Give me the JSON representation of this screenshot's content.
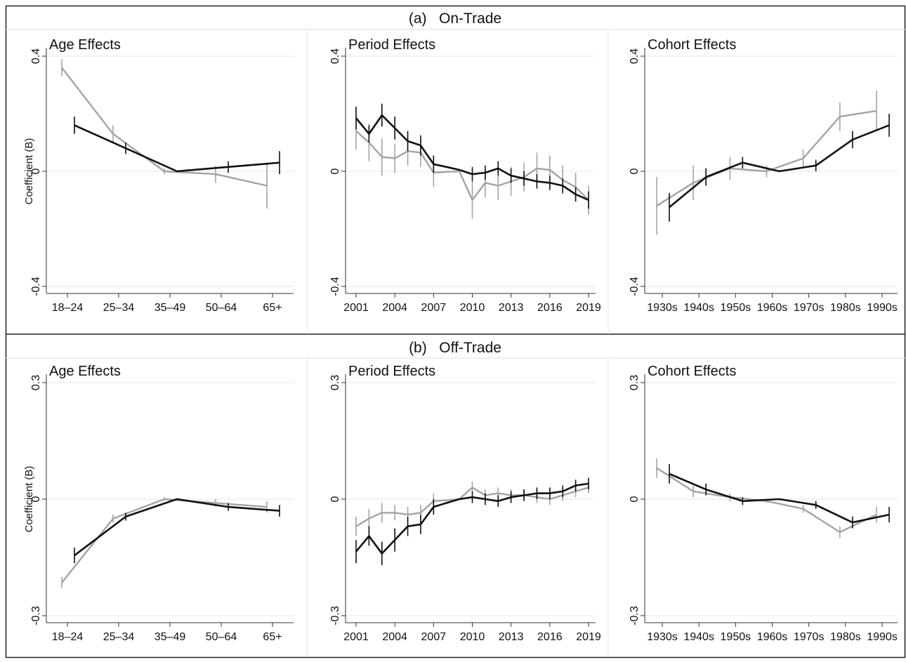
{
  "figure": {
    "rows": [
      {
        "title": "(a)   On-Trade"
      },
      {
        "title": "(b)   Off-Trade"
      }
    ],
    "ylabel": "Coefficient (B)",
    "colors": {
      "series_black": "#111111",
      "series_gray": "#a3a3a3",
      "gridline": "#e6e6e6",
      "border": "#222222"
    }
  },
  "chart_data": [
    {
      "type": "line",
      "row": 0,
      "col": 0,
      "title": "Age Effects",
      "ylabel": "Coefficient (B)",
      "categories": [
        "18–24",
        "25–34",
        "35–49",
        "50–64",
        "65+"
      ],
      "ylim": [
        -0.4,
        0.4
      ],
      "yticks": [
        -0.4,
        0,
        0.4
      ],
      "yticklabels": [
        "-0.4",
        "0",
        "0.4"
      ],
      "grid": true,
      "series": [
        {
          "color": "gray",
          "values": [
            0.36,
            0.13,
            0.0,
            -0.01,
            -0.05
          ],
          "ci": [
            0.03,
            0.03,
            0.01,
            0.03,
            0.08
          ]
        },
        {
          "color": "black",
          "values": [
            0.16,
            0.08,
            0.0,
            0.015,
            0.03
          ],
          "ci": [
            0.03,
            0.02,
            0.0,
            0.02,
            0.04
          ]
        }
      ]
    },
    {
      "type": "line",
      "row": 0,
      "col": 1,
      "title": "Period Effects",
      "ylabel": "",
      "x": [
        2001,
        2002,
        2003,
        2004,
        2005,
        2006,
        2007,
        2008,
        2009,
        2010,
        2011,
        2012,
        2013,
        2014,
        2015,
        2016,
        2017,
        2018,
        2019
      ],
      "xticks": [
        2001,
        2004,
        2007,
        2010,
        2013,
        2016,
        2019
      ],
      "ylim": [
        -0.4,
        0.4
      ],
      "yticks": [
        -0.4,
        0,
        0.4
      ],
      "yticklabels": [
        "-0.4",
        "0",
        "0.4"
      ],
      "grid": true,
      "series": [
        {
          "color": "gray",
          "values": [
            0.14,
            0.1,
            0.05,
            0.045,
            0.07,
            0.065,
            -0.005,
            -0.002,
            0.0,
            -0.1,
            -0.04,
            -0.05,
            -0.035,
            -0.02,
            0.01,
            0.005,
            -0.03,
            -0.055,
            -0.1
          ],
          "ci": [
            0.065,
            0.065,
            0.065,
            0.05,
            0.05,
            0.05,
            0.05,
            0.0,
            0.0,
            0.065,
            0.05,
            0.05,
            0.05,
            0.05,
            0.055,
            0.05,
            0.05,
            0.05,
            0.05
          ]
        },
        {
          "color": "black",
          "values": [
            0.185,
            0.13,
            0.195,
            0.15,
            0.105,
            0.09,
            0.025,
            0.015,
            0.005,
            -0.01,
            -0.005,
            0.01,
            -0.015,
            -0.025,
            -0.035,
            -0.04,
            -0.05,
            -0.08,
            -0.1
          ],
          "ci": [
            0.04,
            0.03,
            0.04,
            0.04,
            0.035,
            0.035,
            0.03,
            0.0,
            0.0,
            0.025,
            0.025,
            0.025,
            0.025,
            0.025,
            0.025,
            0.025,
            0.025,
            0.025,
            0.03
          ]
        }
      ]
    },
    {
      "type": "line",
      "row": 0,
      "col": 2,
      "title": "Cohort Effects",
      "ylabel": "",
      "categories": [
        "1930s",
        "1940s",
        "1950s",
        "1960s",
        "1970s",
        "1980s",
        "1990s"
      ],
      "ylim": [
        -0.4,
        0.4
      ],
      "yticks": [
        -0.4,
        0,
        0.4
      ],
      "yticklabels": [
        "-0.4",
        "0",
        "0.4"
      ],
      "grid": true,
      "series": [
        {
          "color": "gray",
          "values": [
            -0.12,
            -0.04,
            0.01,
            0.0,
            0.045,
            0.19,
            0.21
          ],
          "ci": [
            0.1,
            0.06,
            0.04,
            0.02,
            0.03,
            0.05,
            0.07
          ]
        },
        {
          "color": "black",
          "values": [
            -0.125,
            -0.02,
            0.03,
            0.0,
            0.02,
            0.11,
            0.16
          ],
          "ci": [
            0.05,
            0.03,
            0.02,
            0.0,
            0.02,
            0.03,
            0.04
          ]
        }
      ]
    },
    {
      "type": "line",
      "row": 1,
      "col": 0,
      "title": "Age Effects",
      "ylabel": "Coefficient (B)",
      "categories": [
        "18–24",
        "25–34",
        "35–49",
        "50–64",
        "65+"
      ],
      "ylim": [
        -0.3,
        0.3
      ],
      "yticks": [
        -0.3,
        0,
        0.3
      ],
      "yticklabels": [
        "-0.3",
        "0",
        "0.3"
      ],
      "grid": true,
      "series": [
        {
          "color": "gray",
          "values": [
            -0.215,
            -0.05,
            0.0,
            -0.01,
            -0.02
          ],
          "ci": [
            0.015,
            0.01,
            0.005,
            0.01,
            0.015
          ]
        },
        {
          "color": "black",
          "values": [
            -0.145,
            -0.045,
            0.0,
            -0.02,
            -0.03
          ],
          "ci": [
            0.02,
            0.01,
            0.0,
            0.01,
            0.015
          ]
        }
      ]
    },
    {
      "type": "line",
      "row": 1,
      "col": 1,
      "title": "Period Effects",
      "ylabel": "",
      "x": [
        2001,
        2002,
        2003,
        2004,
        2005,
        2006,
        2007,
        2008,
        2009,
        2010,
        2011,
        2012,
        2013,
        2014,
        2015,
        2016,
        2017,
        2018,
        2019
      ],
      "xticks": [
        2001,
        2004,
        2007,
        2010,
        2013,
        2016,
        2019
      ],
      "ylim": [
        -0.3,
        0.3
      ],
      "yticks": [
        -0.3,
        0,
        0.3
      ],
      "yticklabels": [
        "-0.3",
        "0",
        "0.3"
      ],
      "grid": true,
      "series": [
        {
          "color": "gray",
          "values": [
            -0.07,
            -0.05,
            -0.035,
            -0.035,
            -0.04,
            -0.035,
            -0.005,
            -0.003,
            0.0,
            0.03,
            0.01,
            0.015,
            0.01,
            0.01,
            0.005,
            0.0,
            0.01,
            0.02,
            0.03
          ],
          "ci": [
            0.025,
            0.025,
            0.025,
            0.02,
            0.02,
            0.02,
            0.02,
            0.0,
            0.0,
            0.015,
            0.015,
            0.015,
            0.015,
            0.015,
            0.015,
            0.015,
            0.015,
            0.015,
            0.015
          ]
        },
        {
          "color": "black",
          "values": [
            -0.135,
            -0.095,
            -0.14,
            -0.105,
            -0.07,
            -0.065,
            -0.02,
            -0.01,
            0.0,
            0.005,
            0.0,
            -0.005,
            0.005,
            0.01,
            0.015,
            0.015,
            0.02,
            0.035,
            0.04
          ],
          "ci": [
            0.03,
            0.025,
            0.03,
            0.03,
            0.025,
            0.025,
            0.02,
            0.0,
            0.0,
            0.015,
            0.015,
            0.015,
            0.015,
            0.015,
            0.015,
            0.015,
            0.015,
            0.015,
            0.015
          ]
        }
      ]
    },
    {
      "type": "line",
      "row": 1,
      "col": 2,
      "title": "Cohort Effects",
      "ylabel": "",
      "categories": [
        "1930s",
        "1940s",
        "1950s",
        "1960s",
        "1970s",
        "1980s",
        "1990s"
      ],
      "ylim": [
        -0.3,
        0.3
      ],
      "yticks": [
        -0.3,
        0,
        0.3
      ],
      "yticklabels": [
        "-0.3",
        "0",
        "0.3"
      ],
      "grid": true,
      "series": [
        {
          "color": "gray",
          "values": [
            0.08,
            0.02,
            0.005,
            -0.005,
            -0.025,
            -0.085,
            -0.04
          ],
          "ci": [
            0.025,
            0.015,
            0.01,
            0.005,
            0.01,
            0.015,
            0.02
          ]
        },
        {
          "color": "black",
          "values": [
            0.065,
            0.025,
            -0.005,
            0.0,
            -0.015,
            -0.06,
            -0.04
          ],
          "ci": [
            0.025,
            0.015,
            0.01,
            0.0,
            0.01,
            0.015,
            0.02
          ]
        }
      ]
    }
  ]
}
